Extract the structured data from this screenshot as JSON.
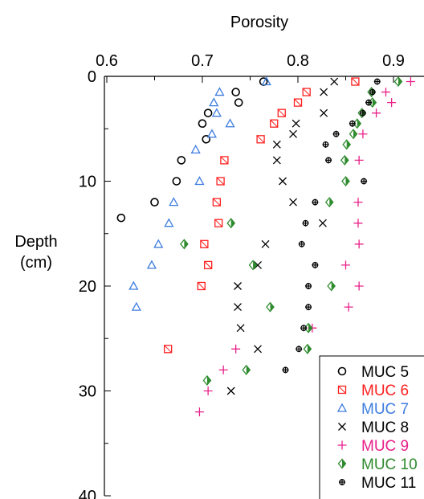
{
  "chart_data": {
    "type": "scatter",
    "title": "Porosity",
    "xlabel": "Porosity",
    "ylabel_lines": [
      "Depth",
      "(cm)"
    ],
    "x_axis_position": "top",
    "y_axis_inverted": true,
    "xlim": [
      0.6,
      0.93
    ],
    "ylim": [
      0,
      40
    ],
    "x_ticks": [
      "0.6",
      "0.7",
      "0.8",
      "0.9"
    ],
    "y_ticks": [
      "0",
      "10",
      "20",
      "30",
      "40"
    ],
    "grid": false,
    "legend_position": "bottom-right",
    "series": [
      {
        "name": "MUC 5",
        "color": "#000000",
        "marker": "circle",
        "points": [
          [
            0.764,
            0.5
          ],
          [
            0.735,
            1.5
          ],
          [
            0.738,
            2.5
          ],
          [
            0.706,
            3.5
          ],
          [
            0.7,
            4.5
          ],
          [
            0.704,
            6
          ],
          [
            0.678,
            8
          ],
          [
            0.673,
            10
          ],
          [
            0.65,
            12
          ],
          [
            0.615,
            13.5
          ]
        ]
      },
      {
        "name": "MUC 6",
        "color": "#ff2020",
        "marker": "square",
        "points": [
          [
            0.86,
            0.5
          ],
          [
            0.809,
            1.5
          ],
          [
            0.8,
            2.5
          ],
          [
            0.783,
            3.5
          ],
          [
            0.775,
            4.5
          ],
          [
            0.761,
            6
          ],
          [
            0.723,
            8
          ],
          [
            0.719,
            10
          ],
          [
            0.715,
            12
          ],
          [
            0.717,
            14
          ],
          [
            0.702,
            16
          ],
          [
            0.706,
            18
          ],
          [
            0.699,
            20
          ],
          [
            0.664,
            26
          ]
        ]
      },
      {
        "name": "MUC 7",
        "color": "#3d7de0",
        "marker": "triangle",
        "points": [
          [
            0.767,
            0.5
          ],
          [
            0.718,
            1.5
          ],
          [
            0.712,
            2.5
          ],
          [
            0.715,
            3.5
          ],
          [
            0.729,
            4.5
          ],
          [
            0.71,
            5.5
          ],
          [
            0.693,
            7
          ],
          [
            0.697,
            10
          ],
          [
            0.67,
            12
          ],
          [
            0.665,
            14
          ],
          [
            0.654,
            16
          ],
          [
            0.647,
            18
          ],
          [
            0.628,
            20
          ],
          [
            0.631,
            22
          ]
        ]
      },
      {
        "name": "MUC 8",
        "color": "#000000",
        "marker": "x",
        "points": [
          [
            0.838,
            0.5
          ],
          [
            0.827,
            1.5
          ],
          [
            0.827,
            3.5
          ],
          [
            0.798,
            4.5
          ],
          [
            0.795,
            5.5
          ],
          [
            0.778,
            6.5
          ],
          [
            0.778,
            8
          ],
          [
            0.784,
            10
          ],
          [
            0.795,
            12
          ],
          [
            0.826,
            14
          ],
          [
            0.766,
            16
          ],
          [
            0.758,
            18
          ],
          [
            0.737,
            20
          ],
          [
            0.737,
            22
          ],
          [
            0.74,
            24
          ],
          [
            0.758,
            26
          ],
          [
            0.73,
            30
          ]
        ]
      },
      {
        "name": "MUC 9",
        "color": "#e8208a",
        "marker": "plus",
        "points": [
          [
            0.918,
            0.5
          ],
          [
            0.892,
            1.5
          ],
          [
            0.898,
            2.5
          ],
          [
            0.882,
            3.5
          ],
          [
            0.868,
            5.5
          ],
          [
            0.864,
            8
          ],
          [
            0.863,
            12
          ],
          [
            0.863,
            14
          ],
          [
            0.864,
            16
          ],
          [
            0.85,
            18
          ],
          [
            0.864,
            20
          ],
          [
            0.853,
            22
          ],
          [
            0.815,
            24
          ],
          [
            0.735,
            26
          ],
          [
            0.722,
            28
          ],
          [
            0.706,
            30
          ],
          [
            0.697,
            32
          ]
        ]
      },
      {
        "name": "MUC 10",
        "color": "#2e8b2e",
        "marker": "diamond",
        "points": [
          [
            0.905,
            0.5
          ],
          [
            0.877,
            1.5
          ],
          [
            0.878,
            2.5
          ],
          [
            0.867,
            3.5
          ],
          [
            0.862,
            4.5
          ],
          [
            0.858,
            5.5
          ],
          [
            0.851,
            6.5
          ],
          [
            0.849,
            8
          ],
          [
            0.85,
            10
          ],
          [
            0.833,
            12
          ],
          [
            0.73,
            14
          ],
          [
            0.681,
            16
          ],
          [
            0.753,
            18
          ],
          [
            0.835,
            20
          ],
          [
            0.771,
            22
          ],
          [
            0.811,
            24
          ],
          [
            0.81,
            26
          ],
          [
            0.746,
            28
          ],
          [
            0.705,
            29
          ]
        ]
      },
      {
        "name": "MUC 11",
        "color": "#000000",
        "marker": "crosscircle",
        "points": [
          [
            0.883,
            0.5
          ],
          [
            0.878,
            1.5
          ],
          [
            0.874,
            2.5
          ],
          [
            0.868,
            3.5
          ],
          [
            0.857,
            4.5
          ],
          [
            0.84,
            5.5
          ],
          [
            0.829,
            6.5
          ],
          [
            0.832,
            8
          ],
          [
            0.869,
            10
          ],
          [
            0.818,
            12
          ],
          [
            0.808,
            14
          ],
          [
            0.804,
            16
          ],
          [
            0.818,
            18
          ],
          [
            0.811,
            20
          ],
          [
            0.811,
            22
          ],
          [
            0.806,
            24
          ],
          [
            0.801,
            26
          ],
          [
            0.787,
            28
          ]
        ]
      }
    ]
  }
}
